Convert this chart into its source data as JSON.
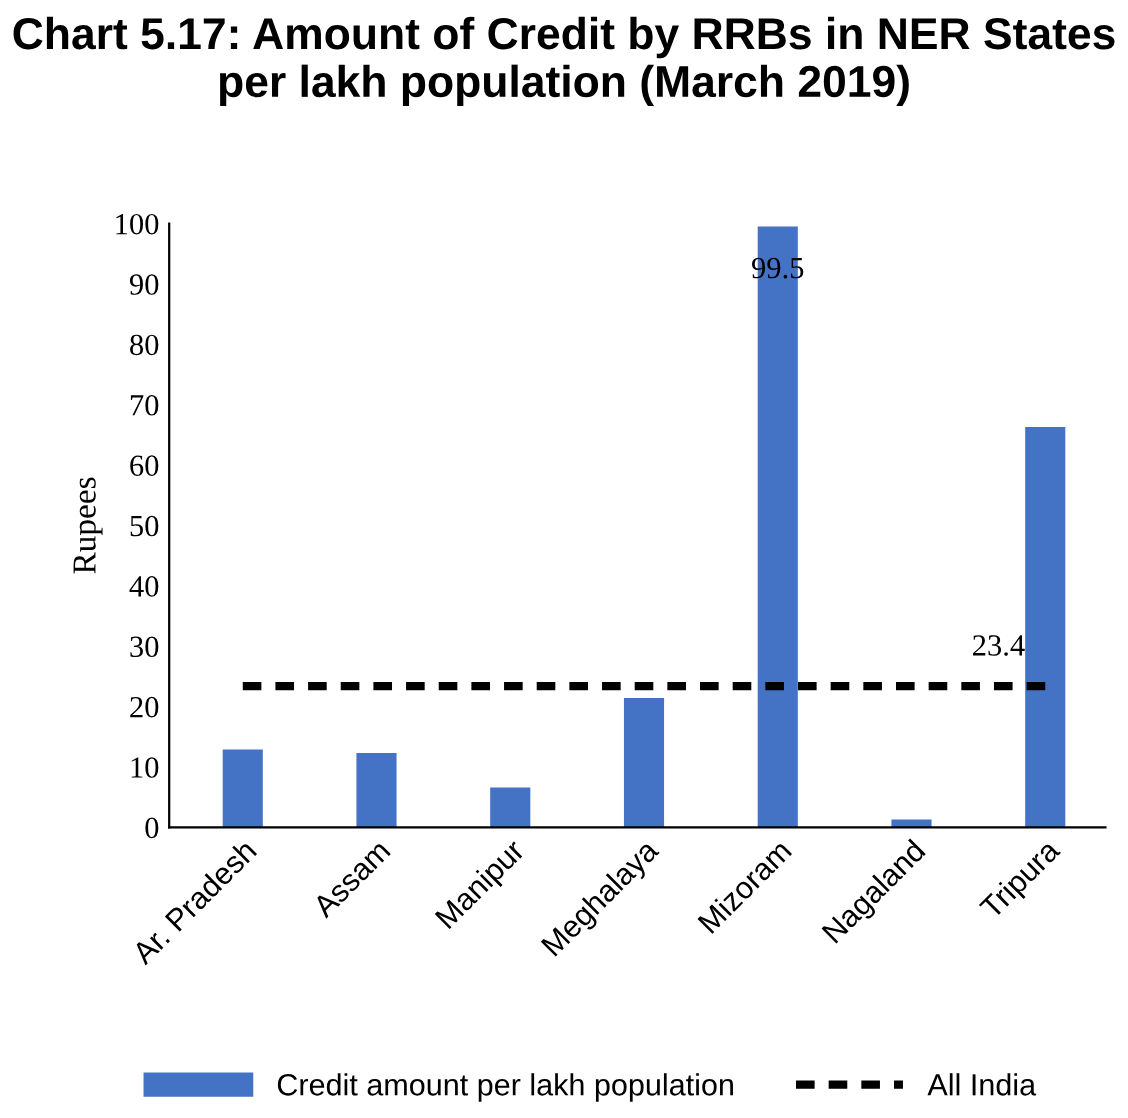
{
  "chart_data": {
    "type": "bar",
    "title": "Chart 5.17: Amount of Credit by RRBs in NER States per lakh population (March 2019)",
    "ylabel": "Rupees",
    "categories": [
      "Ar. Pradesh",
      "Assam",
      "Manipur",
      "Meghalaya",
      "Mizoram",
      "Nagaland",
      "Tripura"
    ],
    "series": [
      {
        "name": "Credit amount per lakh population",
        "color": "#4472c4",
        "values": [
          12.9,
          12.3,
          6.6,
          21.4,
          99.5,
          1.3,
          66.3
        ],
        "value_labels": [
          null,
          null,
          null,
          null,
          "99.5",
          null,
          null
        ]
      },
      {
        "name": "All India",
        "type": "line",
        "color": "#000000",
        "line_style": "dashed",
        "values": [
          23.4,
          23.4,
          23.4,
          23.4,
          23.4,
          23.4,
          23.4
        ],
        "value_labels": [
          null,
          null,
          null,
          null,
          null,
          null,
          "23.4"
        ]
      }
    ],
    "ylim": [
      0,
      100
    ],
    "yticks": [
      0,
      10,
      20,
      30,
      40,
      50,
      60,
      70,
      80,
      90,
      100
    ],
    "grid": false,
    "legend": "bottom"
  }
}
